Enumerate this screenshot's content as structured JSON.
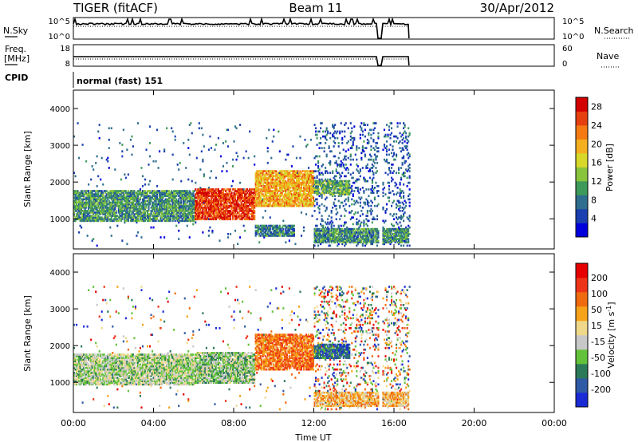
{
  "header": {
    "station": "TIGER (fitACF)",
    "beam": "Beam 11",
    "date": "30/Apr/2012"
  },
  "noise_panel": {
    "left_label": "N.Sky",
    "right_label": "N.Search",
    "left_ticks": [
      "10^5",
      "10^0"
    ],
    "right_ticks": [
      "10^5",
      "10^0"
    ]
  },
  "freq_panel": {
    "left_label_line1": "Freq.",
    "left_label_line2": "[MHz]",
    "right_label": "Nave",
    "left_ticks": [
      "18",
      "8"
    ],
    "right_ticks": [
      "60",
      "0"
    ]
  },
  "cpid": {
    "label": "CPID",
    "value": "normal (fast) 151"
  },
  "chart_data": [
    {
      "type": "heatmap",
      "title": "",
      "xlabel": "",
      "ylabel": "Slant Range [km]",
      "x_ticks": [
        "00:00",
        "04:00",
        "08:00",
        "12:00",
        "16:00",
        "20:00",
        "00:00"
      ],
      "xlim_hours": [
        0,
        24
      ],
      "y_ticks": [
        "1000",
        "2000",
        "3000",
        "4000"
      ],
      "ylim_km": [
        180,
        4500
      ],
      "colorbar_label": "Power [dB]",
      "colorbar_ticks": [
        "4",
        "8",
        "12",
        "16",
        "20",
        "24",
        "28"
      ],
      "colorbar_range": [
        0,
        30
      ],
      "colors": [
        "#0000dd",
        "#1a3fb0",
        "#2f6e8e",
        "#3e9a5a",
        "#88c43c",
        "#d8d82a",
        "#f4b020",
        "#f57a14",
        "#e64010",
        "#d20000"
      ],
      "data_gap_hours": [
        15.2,
        15.4
      ],
      "data_end_hours": 16.75,
      "echo_bands": [
        {
          "t_start": 0.0,
          "t_end": 6.0,
          "range_low": 900,
          "range_high": 1750,
          "power": 10
        },
        {
          "t_start": 6.0,
          "t_end": 9.0,
          "range_low": 950,
          "range_high": 1800,
          "power": 26
        },
        {
          "t_start": 9.0,
          "t_end": 12.0,
          "range_low": 1300,
          "range_high": 2300,
          "power": 20
        },
        {
          "t_start": 12.0,
          "t_end": 13.8,
          "range_low": 1600,
          "range_high": 2000,
          "power": 12
        },
        {
          "t_start": 12.0,
          "t_end": 16.7,
          "range_low": 300,
          "range_high": 700,
          "power": 10
        },
        {
          "t_start": 9.0,
          "t_end": 11.0,
          "range_low": 500,
          "range_high": 800,
          "power": 8
        }
      ]
    },
    {
      "type": "heatmap",
      "title": "",
      "xlabel": "Time UT",
      "ylabel": "Slant Range [km]",
      "x_ticks": [
        "00:00",
        "04:00",
        "08:00",
        "12:00",
        "16:00",
        "20:00",
        "00:00"
      ],
      "xlim_hours": [
        0,
        24
      ],
      "y_ticks": [
        "1000",
        "2000",
        "3000",
        "4000"
      ],
      "ylim_km": [
        180,
        4500
      ],
      "colorbar_label": "Velocity [m s^-1]",
      "colorbar_ticks": [
        "200",
        "100",
        "50",
        "15",
        "-15",
        "-50",
        "-100",
        "-200"
      ],
      "colorbar_range": [
        -250,
        250
      ],
      "colors": [
        "#1a2bd6",
        "#2f5aa6",
        "#2c7a58",
        "#63c23a",
        "#c8c8c8",
        "#f0d88a",
        "#f6a21a",
        "#f06a10",
        "#ee3418",
        "#e60000"
      ],
      "data_gap_hours": [
        15.2,
        15.4
      ],
      "data_end_hours": 16.75,
      "echo_bands": [
        {
          "t_start": 0.0,
          "t_end": 6.0,
          "range_low": 900,
          "range_high": 1750,
          "velocity": -40
        },
        {
          "t_start": 6.0,
          "t_end": 9.0,
          "range_low": 950,
          "range_high": 1800,
          "velocity": -60
        },
        {
          "t_start": 9.0,
          "t_end": 12.0,
          "range_low": 1300,
          "range_high": 2300,
          "velocity": 120
        },
        {
          "t_start": 12.0,
          "t_end": 13.8,
          "range_low": 1600,
          "range_high": 2000,
          "velocity": -150
        },
        {
          "t_start": 12.0,
          "t_end": 16.7,
          "range_low": 300,
          "range_high": 700,
          "velocity": 60
        }
      ]
    }
  ]
}
